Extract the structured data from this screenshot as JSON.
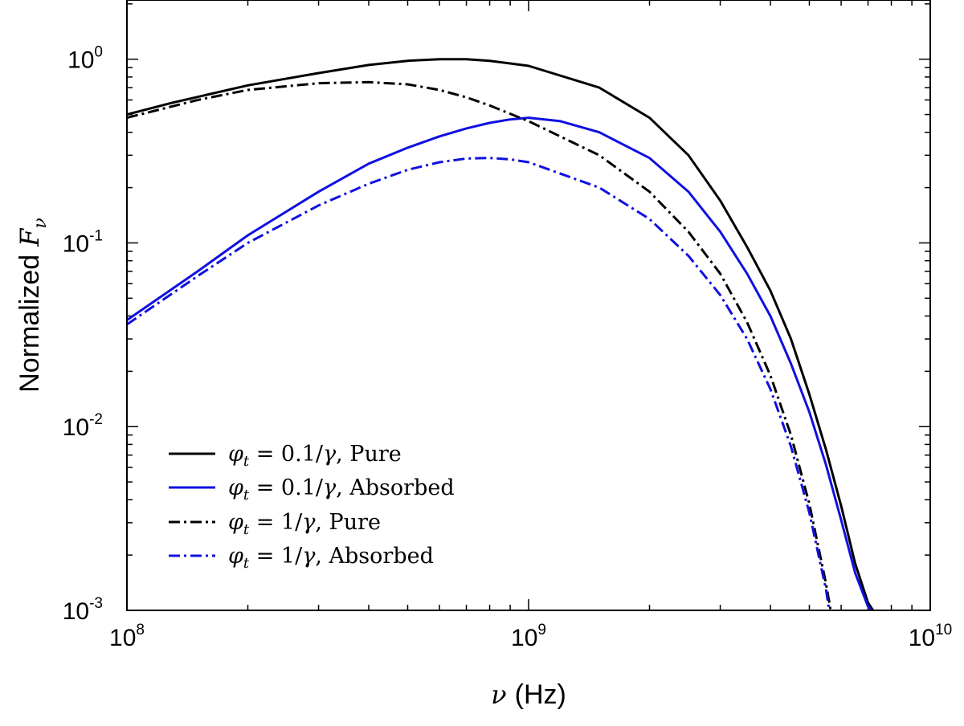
{
  "chart_data": {
    "type": "line",
    "x_scale": "log",
    "y_scale": "log",
    "xlim": [
      100000000.0,
      10000000000.0
    ],
    "ylim": [
      0.001,
      2.1
    ],
    "xlabel": {
      "symbol": "ν",
      "text": "(Hz)"
    },
    "ylabel": {
      "text": "Normalized",
      "symbol": "F",
      "subscript": "ν"
    },
    "x_ticks": [
      {
        "value": 100000000.0,
        "base": "10",
        "exp": "8"
      },
      {
        "value": 1000000000.0,
        "base": "10",
        "exp": "9"
      },
      {
        "value": 10000000000.0,
        "base": "10",
        "exp": "10"
      }
    ],
    "y_ticks": [
      {
        "value": 1,
        "base": "10",
        "exp": "0"
      },
      {
        "value": 0.1,
        "base": "10",
        "exp": "-1"
      },
      {
        "value": 0.01,
        "base": "10",
        "exp": "-2"
      },
      {
        "value": 0.001,
        "base": "10",
        "exp": "-3"
      }
    ],
    "grid": false,
    "legend_position": "bottom-left",
    "series": [
      {
        "name": "φt = 0.1/γ, Pure",
        "legend": {
          "symbol": "φ",
          "sub": "t",
          "rhs": " = 0.1/",
          "gamma": "γ",
          "tail": ", Pure"
        },
        "color": "#000000",
        "dash": "solid",
        "points": [
          [
            100000000.0,
            0.5
          ],
          [
            130000000.0,
            0.58
          ],
          [
            200000000.0,
            0.72
          ],
          [
            300000000.0,
            0.84
          ],
          [
            400000000.0,
            0.93
          ],
          [
            500000000.0,
            0.98
          ],
          [
            600000000.0,
            1.0
          ],
          [
            700000000.0,
            1.0
          ],
          [
            800000000.0,
            0.98
          ],
          [
            1000000000.0,
            0.92
          ],
          [
            1500000000.0,
            0.7
          ],
          [
            2000000000.0,
            0.48
          ],
          [
            2500000000.0,
            0.3
          ],
          [
            3000000000.0,
            0.17
          ],
          [
            3500000000.0,
            0.095
          ],
          [
            4000000000.0,
            0.055
          ],
          [
            4500000000.0,
            0.03
          ],
          [
            5000000000.0,
            0.015
          ],
          [
            5500000000.0,
            0.0075
          ],
          [
            6000000000.0,
            0.0037
          ],
          [
            6500000000.0,
            0.0018
          ],
          [
            7000000000.0,
            0.0011
          ],
          [
            7200000000.0,
            0.001
          ]
        ]
      },
      {
        "name": "φt = 0.1/γ, Absorbed",
        "legend": {
          "symbol": "φ",
          "sub": "t",
          "rhs": " = 0.1/",
          "gamma": "γ",
          "tail": ", Absorbed"
        },
        "color": "#1010e0",
        "dash": "solid",
        "points": [
          [
            100000000.0,
            0.038
          ],
          [
            150000000.0,
            0.07
          ],
          [
            200000000.0,
            0.11
          ],
          [
            300000000.0,
            0.19
          ],
          [
            400000000.0,
            0.27
          ],
          [
            500000000.0,
            0.33
          ],
          [
            600000000.0,
            0.38
          ],
          [
            700000000.0,
            0.42
          ],
          [
            800000000.0,
            0.45
          ],
          [
            900000000.0,
            0.47
          ],
          [
            1000000000.0,
            0.48
          ],
          [
            1200000000.0,
            0.46
          ],
          [
            1500000000.0,
            0.4
          ],
          [
            2000000000.0,
            0.29
          ],
          [
            2500000000.0,
            0.19
          ],
          [
            3000000000.0,
            0.115
          ],
          [
            3500000000.0,
            0.068
          ],
          [
            4000000000.0,
            0.04
          ],
          [
            4500000000.0,
            0.022
          ],
          [
            5000000000.0,
            0.012
          ],
          [
            5500000000.0,
            0.0062
          ],
          [
            6000000000.0,
            0.0031
          ],
          [
            6500000000.0,
            0.0016
          ],
          [
            7000000000.0,
            0.00105
          ],
          [
            7150000000.0,
            0.001
          ]
        ]
      },
      {
        "name": "φt = 1/γ, Pure",
        "legend": {
          "symbol": "φ",
          "sub": "t",
          "rhs": " = 1/",
          "gamma": "γ",
          "tail": ", Pure"
        },
        "color": "#000000",
        "dash": "dashdot",
        "points": [
          [
            100000000.0,
            0.48
          ],
          [
            150000000.0,
            0.6
          ],
          [
            200000000.0,
            0.68
          ],
          [
            300000000.0,
            0.74
          ],
          [
            400000000.0,
            0.75
          ],
          [
            500000000.0,
            0.73
          ],
          [
            600000000.0,
            0.68
          ],
          [
            700000000.0,
            0.62
          ],
          [
            800000000.0,
            0.56
          ],
          [
            1000000000.0,
            0.46
          ],
          [
            1500000000.0,
            0.3
          ],
          [
            2000000000.0,
            0.19
          ],
          [
            2500000000.0,
            0.115
          ],
          [
            3000000000.0,
            0.068
          ],
          [
            3500000000.0,
            0.037
          ],
          [
            4000000000.0,
            0.019
          ],
          [
            4500000000.0,
            0.009
          ],
          [
            5000000000.0,
            0.0038
          ],
          [
            5500000000.0,
            0.0014
          ],
          [
            5650000000.0,
            0.001
          ]
        ]
      },
      {
        "name": "φt = 1/γ, Absorbed",
        "legend": {
          "symbol": "φ",
          "sub": "t",
          "rhs": " = 1/",
          "gamma": "γ",
          "tail": ", Absorbed"
        },
        "color": "#1010e0",
        "dash": "dashdot",
        "points": [
          [
            100000000.0,
            0.036
          ],
          [
            150000000.0,
            0.066
          ],
          [
            200000000.0,
            0.1
          ],
          [
            300000000.0,
            0.16
          ],
          [
            400000000.0,
            0.21
          ],
          [
            500000000.0,
            0.25
          ],
          [
            600000000.0,
            0.275
          ],
          [
            700000000.0,
            0.288
          ],
          [
            800000000.0,
            0.29
          ],
          [
            900000000.0,
            0.285
          ],
          [
            1000000000.0,
            0.275
          ],
          [
            1500000000.0,
            0.2
          ],
          [
            2000000000.0,
            0.135
          ],
          [
            2500000000.0,
            0.085
          ],
          [
            3000000000.0,
            0.052
          ],
          [
            3500000000.0,
            0.03
          ],
          [
            4000000000.0,
            0.016
          ],
          [
            4500000000.0,
            0.0078
          ],
          [
            5000000000.0,
            0.0034
          ],
          [
            5500000000.0,
            0.0013
          ],
          [
            5600000000.0,
            0.001
          ]
        ]
      }
    ]
  }
}
